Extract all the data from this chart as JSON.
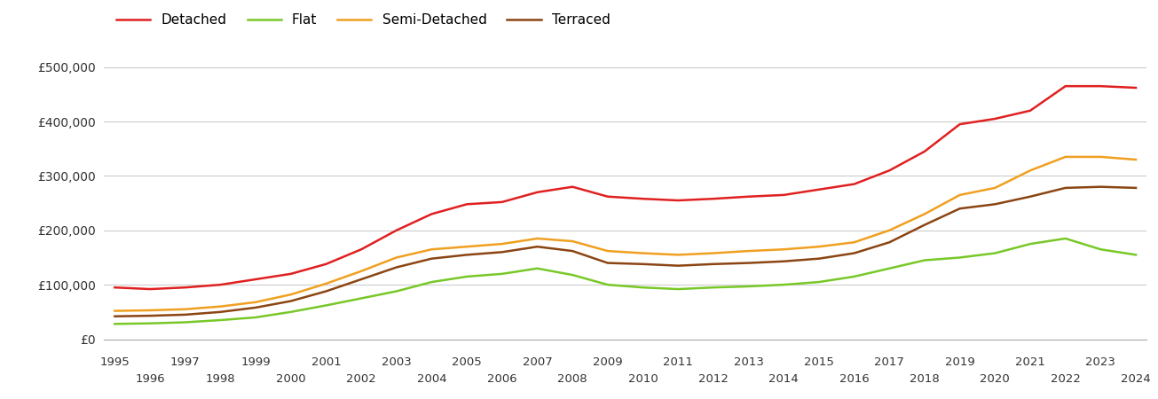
{
  "series": {
    "Detached": {
      "color": "#e02020",
      "values": [
        95000,
        92000,
        95000,
        100000,
        110000,
        120000,
        138000,
        165000,
        200000,
        230000,
        248000,
        252000,
        270000,
        280000,
        262000,
        258000,
        255000,
        258000,
        262000,
        265000,
        275000,
        285000,
        310000,
        345000,
        395000,
        405000,
        420000,
        465000,
        465000,
        462000
      ]
    },
    "Flat": {
      "color": "#78c828",
      "values": [
        28000,
        29000,
        31000,
        35000,
        40000,
        50000,
        62000,
        75000,
        88000,
        105000,
        115000,
        120000,
        130000,
        118000,
        100000,
        95000,
        92000,
        95000,
        97000,
        100000,
        105000,
        115000,
        130000,
        145000,
        150000,
        158000,
        175000,
        185000,
        165000,
        155000
      ]
    },
    "Semi-Detached": {
      "color": "#f0a020",
      "values": [
        52000,
        53000,
        55000,
        60000,
        68000,
        82000,
        102000,
        125000,
        150000,
        165000,
        170000,
        175000,
        185000,
        180000,
        162000,
        158000,
        155000,
        158000,
        162000,
        165000,
        170000,
        178000,
        200000,
        230000,
        265000,
        278000,
        310000,
        335000,
        335000,
        330000
      ]
    },
    "Terraced": {
      "color": "#8B4513",
      "values": [
        42000,
        43000,
        45000,
        50000,
        58000,
        70000,
        88000,
        110000,
        132000,
        148000,
        155000,
        160000,
        170000,
        162000,
        140000,
        138000,
        135000,
        138000,
        140000,
        143000,
        148000,
        158000,
        178000,
        210000,
        240000,
        248000,
        262000,
        278000,
        280000,
        278000
      ]
    }
  },
  "years": [
    1995,
    1996,
    1997,
    1998,
    1999,
    2000,
    2001,
    2002,
    2003,
    2004,
    2005,
    2006,
    2007,
    2008,
    2009,
    2010,
    2011,
    2012,
    2013,
    2014,
    2015,
    2016,
    2017,
    2018,
    2019,
    2020,
    2021,
    2022,
    2023,
    2024
  ],
  "ylim": [
    0,
    550000
  ],
  "yticks": [
    0,
    100000,
    200000,
    300000,
    400000,
    500000
  ],
  "ytick_labels": [
    "£0",
    "£100,000",
    "£200,000",
    "£300,000",
    "£400,000",
    "£500,000"
  ],
  "background_color": "#ffffff",
  "grid_color": "#cccccc",
  "line_width": 1.8
}
